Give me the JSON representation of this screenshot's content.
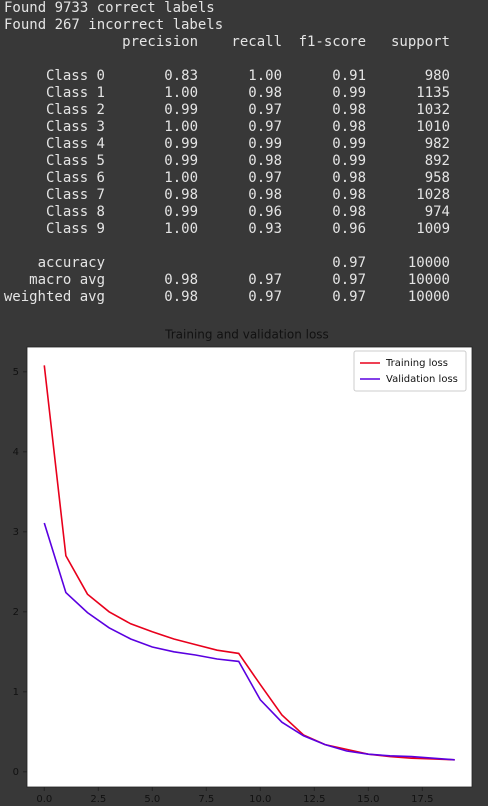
{
  "report": {
    "lines": [
      "Found 9733 correct labels",
      "Found 267 incorrect labels"
    ],
    "columns": [
      "precision",
      "recall",
      "f1-score",
      "support"
    ],
    "rows": [
      [
        "Class 0",
        "0.83",
        "1.00",
        "0.91",
        "980"
      ],
      [
        "Class 1",
        "1.00",
        "0.98",
        "0.99",
        "1135"
      ],
      [
        "Class 2",
        "0.99",
        "0.97",
        "0.98",
        "1032"
      ],
      [
        "Class 3",
        "1.00",
        "0.97",
        "0.98",
        "1010"
      ],
      [
        "Class 4",
        "0.99",
        "0.99",
        "0.99",
        "982"
      ],
      [
        "Class 5",
        "0.99",
        "0.98",
        "0.99",
        "892"
      ],
      [
        "Class 6",
        "1.00",
        "0.97",
        "0.98",
        "958"
      ],
      [
        "Class 7",
        "0.98",
        "0.98",
        "0.98",
        "1028"
      ],
      [
        "Class 8",
        "0.99",
        "0.96",
        "0.98",
        "974"
      ],
      [
        "Class 9",
        "1.00",
        "0.93",
        "0.96",
        "1009"
      ]
    ],
    "summary": [
      [
        "accuracy",
        null,
        null,
        "0.97",
        "10000"
      ],
      [
        "macro avg",
        "0.98",
        "0.97",
        "0.97",
        "10000"
      ],
      [
        "weighted avg",
        "0.98",
        "0.97",
        "0.97",
        "10000"
      ]
    ]
  },
  "chart_data": {
    "type": "line",
    "title": "Training and validation loss",
    "x": [
      0,
      1,
      2,
      3,
      4,
      5,
      6,
      7,
      8,
      9,
      10,
      11,
      12,
      13,
      14,
      15,
      16,
      17,
      18,
      19
    ],
    "series": [
      {
        "name": "Training loss",
        "color": "#e8001c",
        "values": [
          5.08,
          2.7,
          2.22,
          2.0,
          1.85,
          1.75,
          1.66,
          1.59,
          1.52,
          1.48,
          1.09,
          0.71,
          0.46,
          0.34,
          0.28,
          0.22,
          0.19,
          0.17,
          0.16,
          0.15
        ]
      },
      {
        "name": "Validation loss",
        "color": "#5a00e0",
        "values": [
          3.11,
          2.24,
          1.99,
          1.8,
          1.66,
          1.56,
          1.5,
          1.46,
          1.41,
          1.38,
          0.9,
          0.62,
          0.45,
          0.34,
          0.26,
          0.22,
          0.2,
          0.19,
          0.17,
          0.15
        ]
      }
    ],
    "xlim": [
      -0.8,
      19.8
    ],
    "ylim": [
      -0.19,
      5.31
    ],
    "xticks": [
      {
        "value": 0,
        "label": "0.0"
      },
      {
        "value": 2.5,
        "label": "2.5"
      },
      {
        "value": 5,
        "label": "5.0"
      },
      {
        "value": 7.5,
        "label": "7.5"
      },
      {
        "value": 10,
        "label": "10.0"
      },
      {
        "value": 12.5,
        "label": "12.5"
      },
      {
        "value": 15,
        "label": "15.0"
      },
      {
        "value": 17.5,
        "label": "17.5"
      }
    ],
    "yticks": [
      0,
      1,
      2,
      3,
      4,
      5
    ],
    "legend": "upper right",
    "grid": false
  }
}
